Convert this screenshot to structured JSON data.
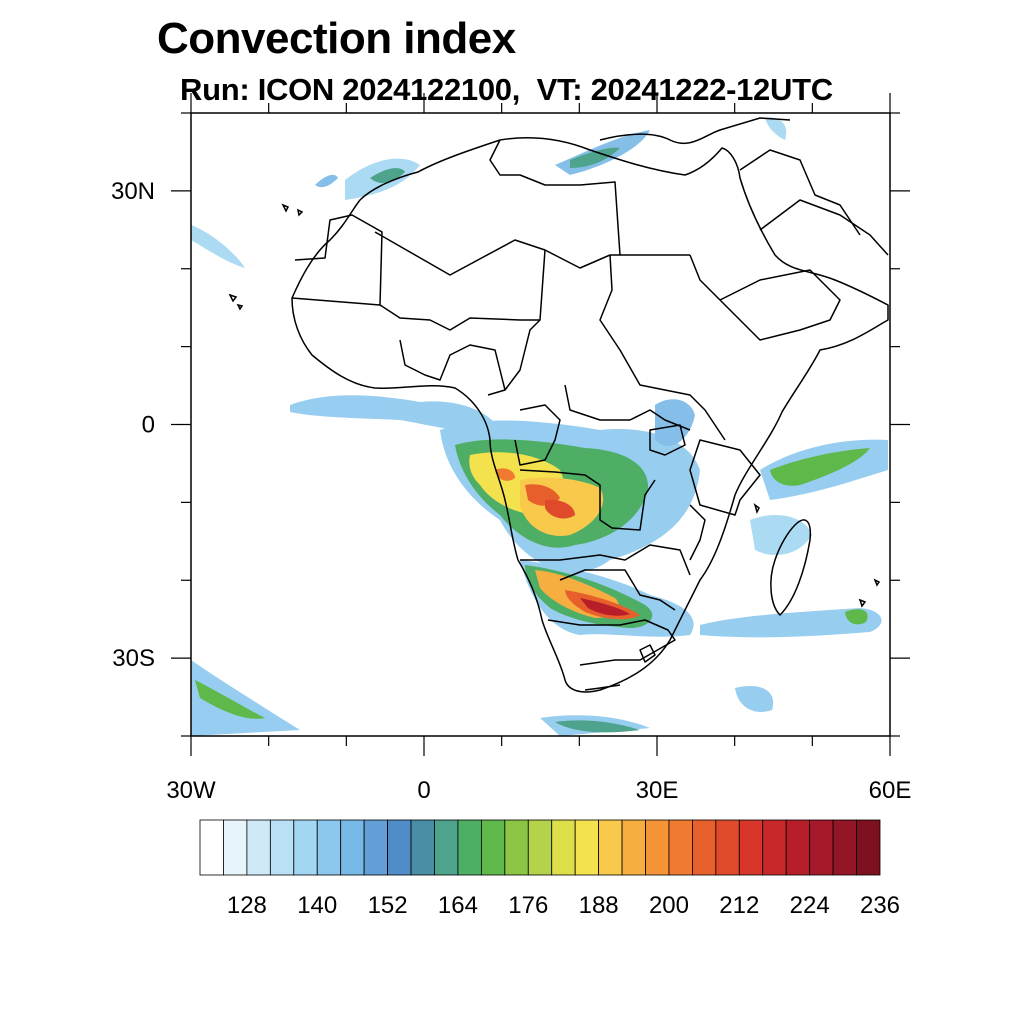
{
  "title": "Convection index",
  "subtitle": "Run: ICON 2024122100,  VT: 20241222-12UTC",
  "map": {
    "projection": "lat-lon",
    "lon_range": [
      -30,
      60
    ],
    "lat_range": [
      -40,
      40
    ],
    "lat_ticks": [
      {
        "value": 30,
        "label": "30N"
      },
      {
        "value": 0,
        "label": "0"
      },
      {
        "value": -30,
        "label": "30S"
      }
    ],
    "lon_ticks": [
      {
        "value": -30,
        "label": "30W"
      },
      {
        "value": 0,
        "label": "0"
      },
      {
        "value": 30,
        "label": "30E"
      },
      {
        "value": 60,
        "label": "60E"
      }
    ]
  },
  "colorbar": {
    "colors": [
      "#ffffff",
      "#e8f4fb",
      "#cfe9f7",
      "#b9e0f5",
      "#a3d6f2",
      "#8cc8ee",
      "#78b8e6",
      "#629fd6",
      "#4f8cc8",
      "#4a8ea6",
      "#4da38c",
      "#4fae66",
      "#5fb84a",
      "#8cc443",
      "#b4d24a",
      "#ddde4a",
      "#f3e24e",
      "#f8c94b",
      "#f7ae40",
      "#f59436",
      "#f07a30",
      "#e7602c",
      "#df4a2a",
      "#d8352b",
      "#c9282b",
      "#b81e2a",
      "#a6192a",
      "#931626",
      "#7f1020"
    ],
    "tick_labels": [
      "128",
      "140",
      "152",
      "164",
      "176",
      "188",
      "200",
      "212",
      "224",
      "236"
    ]
  }
}
